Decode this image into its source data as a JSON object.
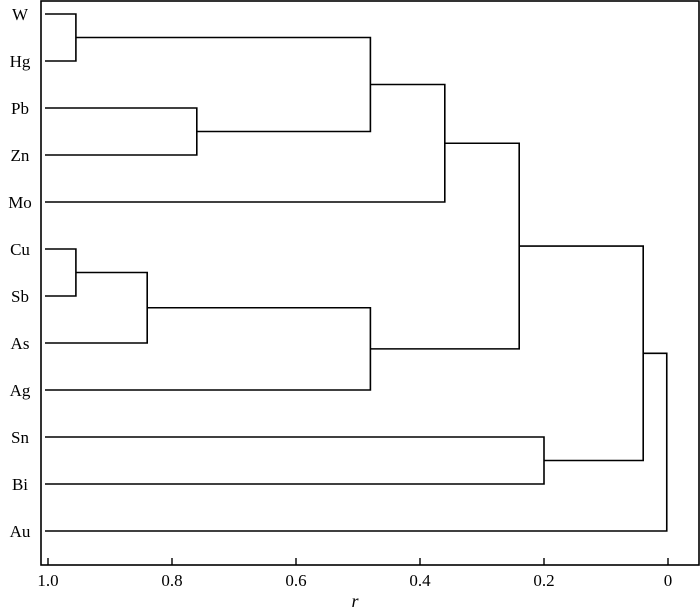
{
  "chart_data": {
    "type": "dendrogram",
    "xlabel": "r",
    "xlim": [
      1.0,
      0
    ],
    "xticks": [
      {
        "value": 1.0,
        "label": "1.0"
      },
      {
        "value": 0.8,
        "label": "0.8"
      },
      {
        "value": 0.6,
        "label": "0.6"
      },
      {
        "value": 0.4,
        "label": "0.4"
      },
      {
        "value": 0.2,
        "label": "0.2"
      },
      {
        "value": 0,
        "label": "0"
      }
    ],
    "leaves": [
      "W",
      "Hg",
      "Pb",
      "Zn",
      "Mo",
      "Cu",
      "Sb",
      "As",
      "Ag",
      "Sn",
      "Bi",
      "Au"
    ],
    "merges": [
      {
        "a": "W",
        "b": "Hg",
        "r": 0.955
      },
      {
        "a": "Pb",
        "b": "Zn",
        "r": 0.76
      },
      {
        "a": "W-Hg",
        "b": "Pb-Zn",
        "r": 0.48
      },
      {
        "a": "W-Hg-Pb-Zn",
        "b": "Mo",
        "r": 0.36
      },
      {
        "a": "Cu",
        "b": "Sb",
        "r": 0.955
      },
      {
        "a": "Cu-Sb",
        "b": "As",
        "r": 0.84
      },
      {
        "a": "Cu-Sb-As",
        "b": "Ag",
        "r": 0.48
      },
      {
        "a": "W-Hg-Pb-Zn-Mo",
        "b": "Cu-Sb-As-Ag",
        "r": 0.24
      },
      {
        "a": "Sn",
        "b": "Bi",
        "r": 0.2
      },
      {
        "a": "W-Hg-Pb-Zn-Mo-Cu-Sb-As-Ag",
        "b": "Sn-Bi",
        "r": 0.04
      },
      {
        "a": "W-Hg-Pb-Zn-Mo-Cu-Sb-As-Ag-Sn-Bi",
        "b": "Au",
        "r": 0.002
      }
    ]
  }
}
